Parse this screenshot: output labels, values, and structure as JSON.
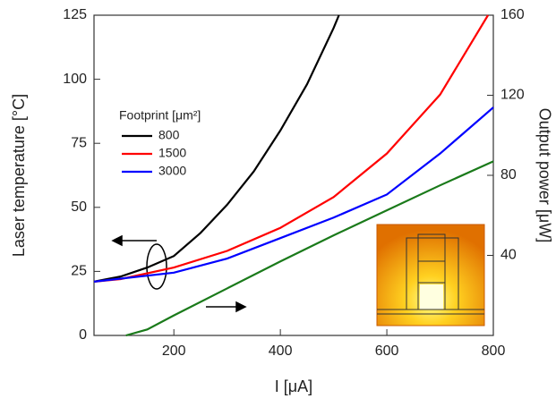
{
  "chart_data": {
    "type": "line",
    "xlabel": "I [μA]",
    "ylabel": "Laser temperature [°C]",
    "y2label": "Output power [μW]",
    "legend_title": "Footprint [μm²]",
    "xlim": [
      50,
      800
    ],
    "xticks": [
      200,
      400,
      600,
      800
    ],
    "ylim": [
      0,
      125
    ],
    "yticks": [
      0,
      25,
      50,
      75,
      100,
      125
    ],
    "y2lim": [
      0,
      160
    ],
    "y2ticks": [
      40,
      80,
      120,
      160
    ],
    "series": [
      {
        "name": "800",
        "color": "#000000",
        "x": [
          50,
          100,
          150,
          200,
          250,
          300,
          350,
          400,
          450,
          500,
          510
        ],
        "values": [
          21,
          23,
          26.5,
          31,
          40,
          51,
          64,
          80,
          98,
          120,
          125
        ]
      },
      {
        "name": "1500",
        "color": "#ff0000",
        "x": [
          50,
          100,
          200,
          300,
          400,
          500,
          600,
          700,
          790
        ],
        "values": [
          21,
          22,
          26.5,
          33,
          42,
          54,
          71,
          94,
          125
        ]
      },
      {
        "name": "3000",
        "color": "#0000ff",
        "x": [
          50,
          200,
          300,
          400,
          500,
          600,
          700,
          800
        ],
        "values": [
          21,
          24.5,
          30,
          38,
          46,
          55,
          71,
          89
        ]
      },
      {
        "color": "#1a7a1a",
        "axis": "y2",
        "x": [
          110,
          150,
          200,
          300,
          400,
          500,
          600,
          700,
          800
        ],
        "values": [
          0,
          3,
          10,
          23.5,
          37,
          50,
          62.5,
          75,
          87
        ]
      }
    ]
  }
}
